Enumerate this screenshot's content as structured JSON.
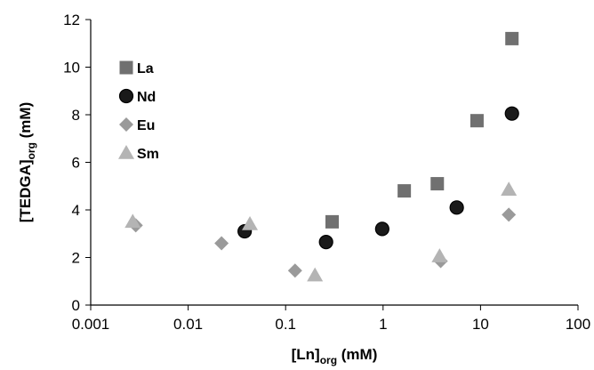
{
  "chart_data": {
    "type": "scatter",
    "title": "",
    "xlabel": {
      "main": "[Ln]",
      "sub": "org",
      "unit": " (mM)"
    },
    "ylabel": {
      "main": "[TEDGA]",
      "sub": "org",
      "unit": " (mM)"
    },
    "x_scale": "log",
    "xlim": [
      0.001,
      100
    ],
    "ylim": [
      0,
      12
    ],
    "x_ticks": [
      "0.001",
      "0.01",
      "0.1",
      "1",
      "10",
      "100"
    ],
    "y_ticks": [
      "0",
      "2",
      "4",
      "6",
      "8",
      "10",
      "12"
    ],
    "grid": false,
    "legend_position": "top-left inside",
    "series": [
      {
        "name": "La",
        "marker": "square",
        "color": "#707070",
        "x": [
          0.3,
          1.65,
          3.6,
          9.2,
          21.0
        ],
        "y": [
          3.5,
          4.8,
          5.1,
          7.75,
          11.2
        ]
      },
      {
        "name": "Nd",
        "marker": "circle",
        "color": "#1a1a1a",
        "x": [
          0.038,
          0.26,
          0.98,
          5.7,
          21.0
        ],
        "y": [
          3.1,
          2.65,
          3.2,
          4.1,
          8.05
        ]
      },
      {
        "name": "Eu",
        "marker": "diamond",
        "color": "#9a9a9a",
        "x": [
          0.0029,
          0.022,
          0.125,
          3.9,
          19.5
        ],
        "y": [
          3.35,
          2.6,
          1.45,
          1.85,
          3.8
        ]
      },
      {
        "name": "Sm",
        "marker": "triangle",
        "color": "#b4b4b4",
        "x": [
          0.0027,
          0.043,
          0.2,
          3.8,
          19.5
        ],
        "y": [
          3.5,
          3.4,
          1.25,
          2.05,
          4.85
        ]
      }
    ]
  }
}
